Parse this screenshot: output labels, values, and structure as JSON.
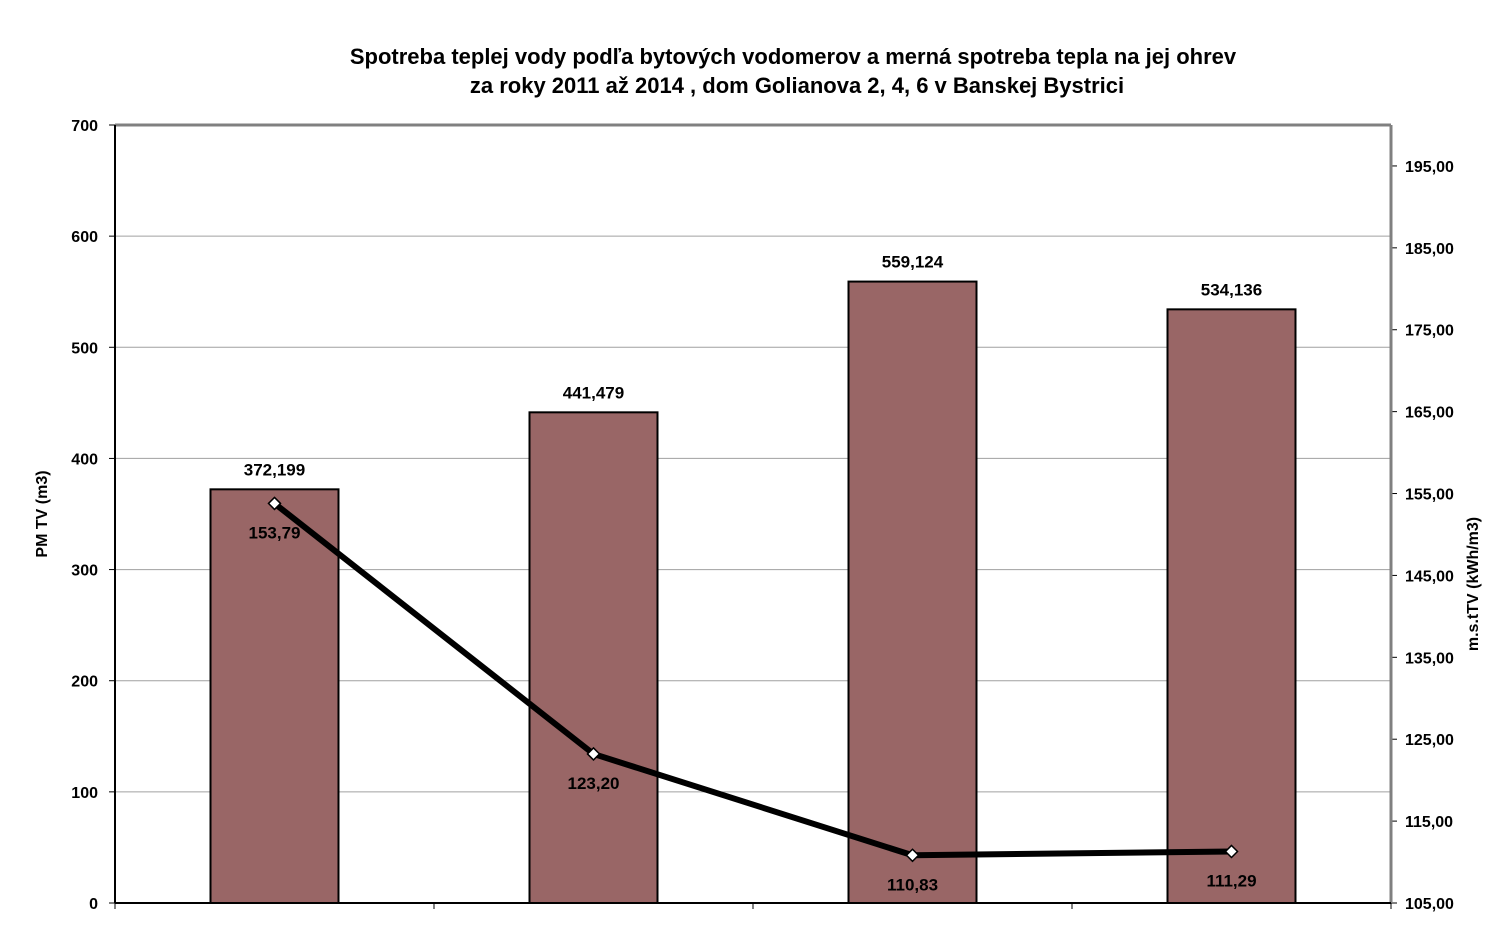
{
  "chart_data": {
    "type": "bar+line",
    "title": [
      "Spotreba teplej vody podľa bytových vodomerov a merná spotreba tepla na jej ohrev",
      "za roky 2011 až 2014 , dom Golianova 2, 4, 6 v Banskej Bystrici"
    ],
    "ylabel": "PM TV (m3)",
    "y2label": "m.s.tTV (kWh/m3)",
    "ylim": [
      0,
      700
    ],
    "yticks": [
      "0",
      "100",
      "200",
      "300",
      "400",
      "500",
      "600",
      "700"
    ],
    "y2lim": [
      105,
      200
    ],
    "y2ticks": [
      "105,00",
      "115,00",
      "125,00",
      "135,00",
      "145,00",
      "155,00",
      "165,00",
      "175,00",
      "185,00",
      "195,00"
    ],
    "grid": true,
    "series": [
      {
        "type": "bar",
        "axis": "left",
        "color": "#996666",
        "values": [
          372.199,
          441.479,
          559.124,
          534.136
        ],
        "labels": [
          "372,199",
          "441,479",
          "559,124",
          "534,136"
        ]
      },
      {
        "type": "line",
        "axis": "right",
        "color": "#000000",
        "marker": "diamond",
        "values": [
          153.79,
          123.2,
          110.83,
          111.29
        ],
        "labels": [
          "153,79",
          "123,20",
          "110,83",
          "111,29"
        ]
      }
    ]
  }
}
